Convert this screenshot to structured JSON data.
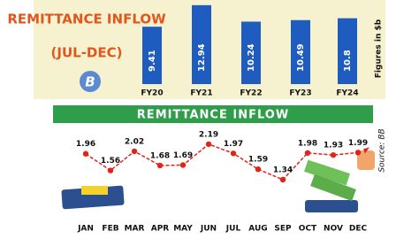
{
  "chart_data": [
    {
      "type": "bar",
      "title": "REMITTANCE INFLOW",
      "subtitle": "(JUL-DEC)",
      "y_label": "Figures in $b",
      "categories": [
        "FY20",
        "FY21",
        "FY22",
        "FY23",
        "FY24"
      ],
      "values": [
        9.41,
        12.94,
        10.24,
        10.49,
        10.8
      ],
      "color": "#1f5cc0",
      "ylim": [
        0,
        13.5
      ]
    },
    {
      "type": "line",
      "title": "REMITTANCE INFLOW",
      "source": "Source: BB",
      "categories": [
        "JAN",
        "FEB",
        "MAR",
        "APR",
        "MAY",
        "JUN",
        "JUL",
        "AUG",
        "SEP",
        "OCT",
        "NOV",
        "DEC"
      ],
      "series": [
        {
          "name": "Remittance",
          "color": "#e2231a",
          "values": [
            1.96,
            1.56,
            2.02,
            1.68,
            1.69,
            2.19,
            1.97,
            1.59,
            1.34,
            1.98,
            1.93,
            1.99
          ]
        }
      ],
      "ylim": [
        1.0,
        2.4
      ]
    }
  ]
}
